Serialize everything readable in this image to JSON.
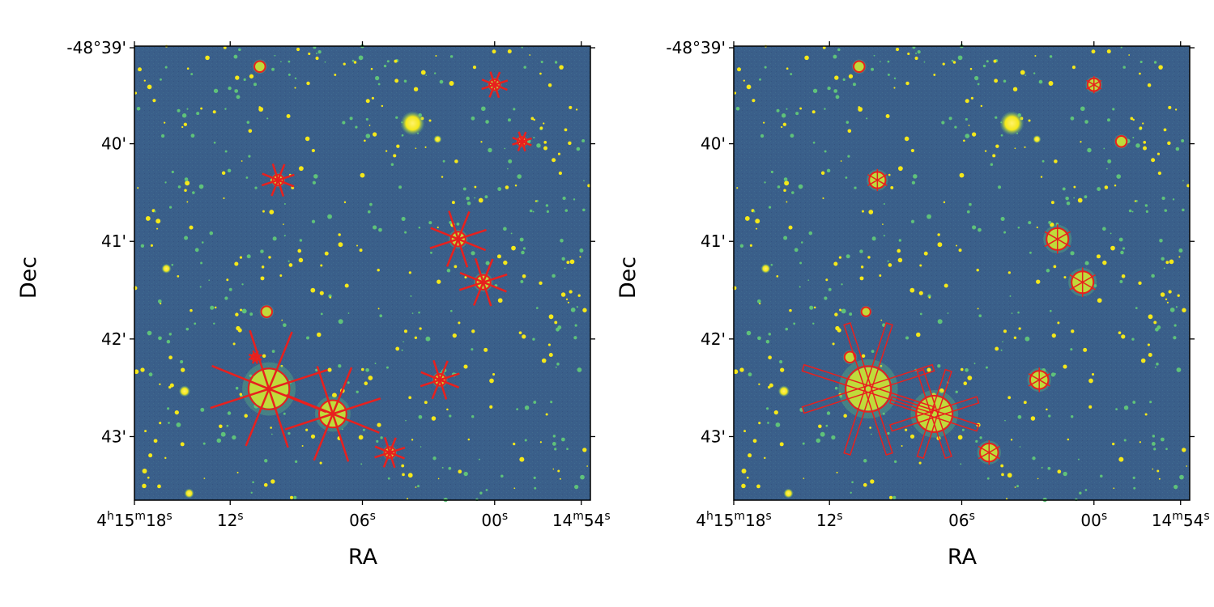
{
  "figure": {
    "panels": [
      {
        "id": "left",
        "xlabel": "RA",
        "ylabel": "Dec",
        "xticks": [
          {
            "main": "4",
            "parts": [
              {
                "t": "h",
                "sup": true
              },
              {
                "t": "15",
                "sup": false
              },
              {
                "t": "m",
                "sup": true
              },
              {
                "t": "18",
                "sup": false
              },
              {
                "t": "s",
                "sup": true
              }
            ]
          },
          {
            "main": "12",
            "parts": [
              {
                "t": "s",
                "sup": true
              }
            ]
          },
          {
            "main": "06",
            "parts": [
              {
                "t": "s",
                "sup": true
              }
            ]
          },
          {
            "main": "00",
            "parts": [
              {
                "t": "s",
                "sup": true
              }
            ]
          },
          {
            "main": "14",
            "parts": [
              {
                "t": "m",
                "sup": true
              },
              {
                "t": "54",
                "sup": false
              },
              {
                "t": "s",
                "sup": true
              }
            ]
          }
        ],
        "yticks": [
          "-48°39'",
          "40'",
          "41'",
          "42'",
          "43'"
        ],
        "masks": [
          {
            "x": 0.275,
            "y": 0.045,
            "r": 0.012,
            "type": "ring"
          },
          {
            "x": 0.79,
            "y": 0.085,
            "r": 0.012,
            "type": "spike",
            "len": 0.06
          },
          {
            "x": 0.85,
            "y": 0.21,
            "r": 0.01,
            "type": "spike",
            "len": 0.045
          },
          {
            "x": 0.315,
            "y": 0.295,
            "r": 0.012,
            "type": "spike",
            "len": 0.075
          },
          {
            "x": 0.71,
            "y": 0.425,
            "r": 0.016,
            "type": "spike",
            "len": 0.13
          },
          {
            "x": 0.765,
            "y": 0.52,
            "r": 0.016,
            "type": "spike",
            "len": 0.11
          },
          {
            "x": 0.29,
            "y": 0.585,
            "r": 0.012,
            "type": "ring"
          },
          {
            "x": 0.265,
            "y": 0.685,
            "r": 0.008,
            "type": "spike",
            "len": 0.03
          },
          {
            "x": 0.67,
            "y": 0.735,
            "r": 0.013,
            "type": "spike",
            "len": 0.09
          },
          {
            "x": 0.295,
            "y": 0.755,
            "r": 0.045,
            "type": "spike",
            "len": 0.27
          },
          {
            "x": 0.435,
            "y": 0.81,
            "r": 0.03,
            "type": "spike",
            "len": 0.22
          },
          {
            "x": 0.56,
            "y": 0.895,
            "r": 0.012,
            "type": "spike",
            "len": 0.07
          }
        ]
      },
      {
        "id": "right",
        "xlabel": "RA",
        "ylabel": "Dec",
        "xticks": [
          {
            "main": "4",
            "parts": [
              {
                "t": "h",
                "sup": true
              },
              {
                "t": "15",
                "sup": false
              },
              {
                "t": "m",
                "sup": true
              },
              {
                "t": "18",
                "sup": false
              },
              {
                "t": "s",
                "sup": true
              }
            ]
          },
          {
            "main": "12",
            "parts": [
              {
                "t": "s",
                "sup": true
              }
            ]
          },
          {
            "main": "06",
            "parts": [
              {
                "t": "s",
                "sup": true
              }
            ]
          },
          {
            "main": "00",
            "parts": [
              {
                "t": "s",
                "sup": true
              }
            ]
          },
          {
            "main": "14",
            "parts": [
              {
                "t": "m",
                "sup": true
              },
              {
                "t": "54",
                "sup": false
              },
              {
                "t": "s",
                "sup": true
              }
            ]
          }
        ],
        "yticks": [
          "-48°39'",
          "40'",
          "41'",
          "42'",
          "43'"
        ],
        "masks": [
          {
            "x": 0.275,
            "y": 0.045,
            "r": 0.012,
            "type": "ring"
          },
          {
            "x": 0.79,
            "y": 0.085,
            "r": 0.014,
            "type": "star"
          },
          {
            "x": 0.85,
            "y": 0.21,
            "r": 0.012,
            "type": "ring"
          },
          {
            "x": 0.315,
            "y": 0.295,
            "r": 0.018,
            "type": "star"
          },
          {
            "x": 0.71,
            "y": 0.425,
            "r": 0.024,
            "type": "star"
          },
          {
            "x": 0.765,
            "y": 0.52,
            "r": 0.024,
            "type": "star"
          },
          {
            "x": 0.29,
            "y": 0.585,
            "r": 0.01,
            "type": "ring"
          },
          {
            "x": 0.255,
            "y": 0.685,
            "r": 0.012,
            "type": "ring"
          },
          {
            "x": 0.67,
            "y": 0.735,
            "r": 0.02,
            "type": "star"
          },
          {
            "x": 0.295,
            "y": 0.755,
            "r": 0.05,
            "type": "spikebox",
            "len": 0.3
          },
          {
            "x": 0.44,
            "y": 0.81,
            "r": 0.04,
            "type": "spikebox",
            "len": 0.2
          },
          {
            "x": 0.56,
            "y": 0.895,
            "r": 0.02,
            "type": "star"
          }
        ]
      }
    ],
    "colors": {
      "background": "#3a5f8a",
      "source": "#f4e81a",
      "halo": "#5fc27a",
      "mask": "#e8201e"
    }
  }
}
